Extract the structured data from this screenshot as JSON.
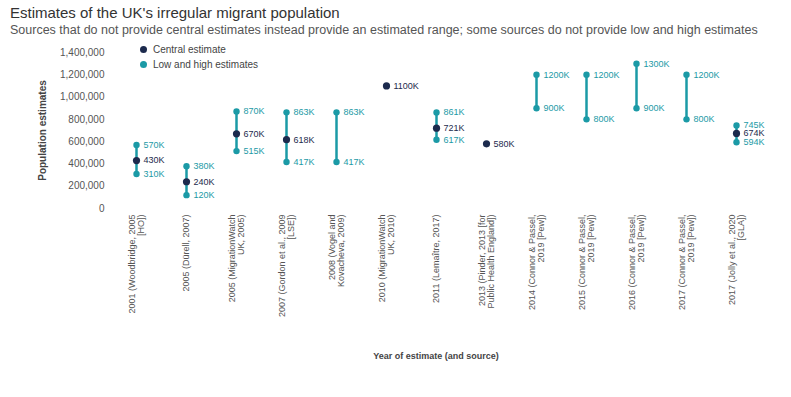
{
  "chart_data": {
    "type": "range_dot",
    "title": "Estimates of the UK's irregular migrant population",
    "subtitle": "Sources that do not provide central estimates instead provide an estimated range; some sources do not provide low and high estimates",
    "x_label": "Year of estimate (and source)",
    "y_label": "Population estimates",
    "categories": [
      "2001 (Woodbridge, 2005\n[HO])",
      "2005 (Dürell, 2007)",
      "2005 (MigrationWatch\nUK, 2005)",
      "2007 (Gordon et al., 2009\n[LSE])",
      "2008 (Vogel and\nKovacheva, 2009)",
      "2010 (MigrationWatch\nUK, 2010)",
      "2011 (Lemaître, 2017)",
      "2013 (Pinder, 2013 [for\nPublic Health England])",
      "2014 (Connor & Passel,\n2019 [Pew])",
      "2015 (Connor & Passel,\n2019 [Pew])",
      "2016 (Connor & Passel,\n2019 [Pew])",
      "2017 (Connor & Passel,\n2019 [Pew])",
      "2017 (Jolly et al., 2020\n[GLA])"
    ],
    "series": [
      {
        "name": "Central estimate",
        "color": "#1c2a4d",
        "values": [
          430000,
          240000,
          670000,
          618000,
          null,
          1100000,
          721000,
          580000,
          null,
          null,
          null,
          null,
          674000
        ],
        "value_labels": [
          "430K",
          "240K",
          "670K",
          "618K",
          null,
          "1100K",
          "721K",
          "580K",
          null,
          null,
          null,
          null,
          "674K"
        ]
      },
      {
        "name": "Low and high estimates",
        "color": "#1b9aa6",
        "low": {
          "values": [
            310000,
            120000,
            515000,
            417000,
            417000,
            null,
            617000,
            null,
            900000,
            800000,
            900000,
            800000,
            594000
          ],
          "value_labels": [
            "310K",
            "120K",
            "515K",
            "417K",
            "417K",
            null,
            "617K",
            null,
            "900K",
            "800K",
            "900K",
            "800K",
            "594K"
          ]
        },
        "high": {
          "values": [
            570000,
            380000,
            870000,
            863000,
            863000,
            null,
            861000,
            null,
            1200000,
            1200000,
            1300000,
            1200000,
            745000
          ],
          "value_labels": [
            "570K",
            "380K",
            "870K",
            "863K",
            "863K",
            null,
            "861K",
            null,
            "1200K",
            "1200K",
            "1300K",
            "1200K",
            "745K"
          ]
        }
      }
    ],
    "ylim": [
      0,
      1400000
    ],
    "yticks": [
      0,
      {
        "value": 200000,
        "label": "200,000"
      },
      {
        "value": 400000,
        "label": "400,000"
      },
      {
        "value": 600000,
        "label": "600,000"
      },
      {
        "value": 800000,
        "label": "800,000"
      },
      {
        "value": 1000000,
        "label": "1,000,000"
      },
      {
        "value": 1200000,
        "label": "1,200,000"
      },
      {
        "value": 1400000,
        "label": "1,400,000"
      }
    ],
    "grid": false,
    "legend": "top-left",
    "data_labels": true
  }
}
